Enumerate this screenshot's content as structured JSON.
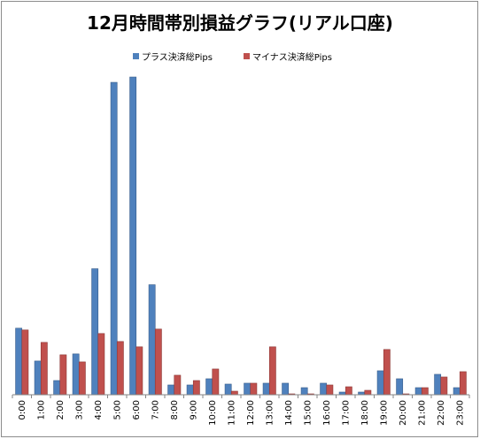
{
  "title": "12月時間帯別損益グラフ(リアル口座)",
  "colors": {
    "plus": "#4f81bd",
    "minus": "#c0504d",
    "axis": "#868686"
  },
  "chart_data": {
    "type": "bar",
    "title": "12月時間帯別損益グラフ(リアル口座)",
    "legend_position": "top",
    "grid": false,
    "categories": [
      "0:00",
      "1:00",
      "2:00",
      "3:00",
      "4:00",
      "5:00",
      "6:00",
      "7:00",
      "8:00",
      "9:00",
      "10:00",
      "11:00",
      "12:00",
      "13:00",
      "14:00",
      "15:00",
      "16:00",
      "17:00",
      "18:00",
      "19:00",
      "20:00",
      "21:00",
      "22:00",
      "23:00"
    ],
    "ylim": [
      0,
      365
    ],
    "series": [
      {
        "name": "プラス決済総Pips",
        "values": [
          75,
          38,
          16,
          46,
          142,
          352,
          358,
          124,
          11,
          11,
          18,
          12,
          13,
          13,
          13,
          8,
          13,
          3,
          3,
          27,
          18,
          8,
          23,
          8
        ]
      },
      {
        "name": "マイナス決済総Pips",
        "values": [
          73,
          59,
          45,
          37,
          69,
          60,
          54,
          74,
          22,
          16,
          29,
          4,
          13,
          54,
          1,
          1,
          11,
          9,
          5,
          51,
          1,
          8,
          20,
          26
        ]
      }
    ]
  }
}
